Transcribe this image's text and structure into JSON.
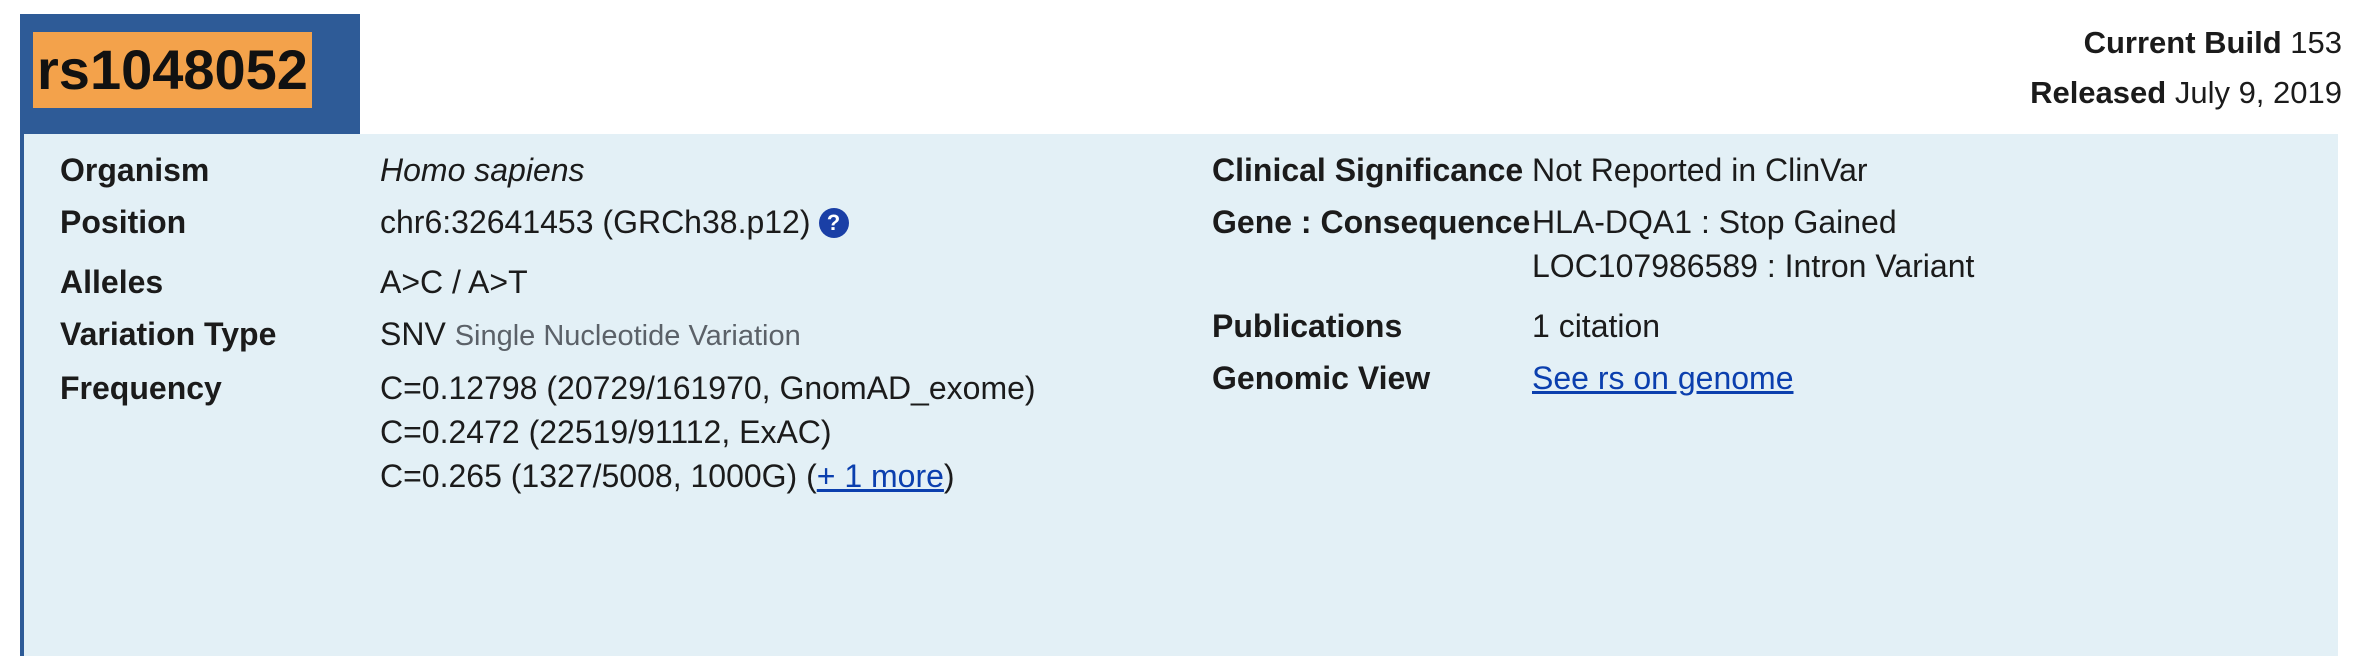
{
  "header": {
    "rsid": "rs1048052",
    "current_build_label": "Current Build",
    "current_build_value": "153",
    "released_label": "Released",
    "released_value": "July 9, 2019"
  },
  "summary_left": {
    "organism": {
      "label": "Organism",
      "value": "Homo sapiens"
    },
    "position": {
      "label": "Position",
      "value": "chr6:32641453 (GRCh38.p12)",
      "help_glyph": "?"
    },
    "alleles": {
      "label": "Alleles",
      "value": "A>C / A>T"
    },
    "variation_type": {
      "label": "Variation Type",
      "value": "SNV",
      "detail": "Single Nucleotide Variation"
    },
    "frequency": {
      "label": "Frequency",
      "lines": [
        "C=0.12798 (20729/161970, GnomAD_exome)",
        "C=0.2472 (22519/91112, ExAC)",
        "C=0.265 (1327/5008, 1000G) ("
      ],
      "more_link": "+ 1 more",
      "closing": ")"
    }
  },
  "summary_right": {
    "clinical_significance": {
      "label": "Clinical Significance",
      "value": "Not Reported in ClinVar"
    },
    "gene_consequence": {
      "label": "Gene : Consequence",
      "lines": [
        "HLA-DQA1 : Stop Gained",
        "LOC107986589 : Intron Variant"
      ]
    },
    "publications": {
      "label": "Publications",
      "value": "1 citation"
    },
    "genomic_view": {
      "label": "Genomic View",
      "link": "See rs on genome"
    }
  },
  "colors": {
    "header_tab": "#2e5b97",
    "rsid_highlight": "#f3a24b",
    "panel_background": "#e3f0f6",
    "link": "#0b3fae",
    "help_icon": "#1a3fa6"
  },
  "icons": {
    "position_help": "question-circle-icon"
  }
}
